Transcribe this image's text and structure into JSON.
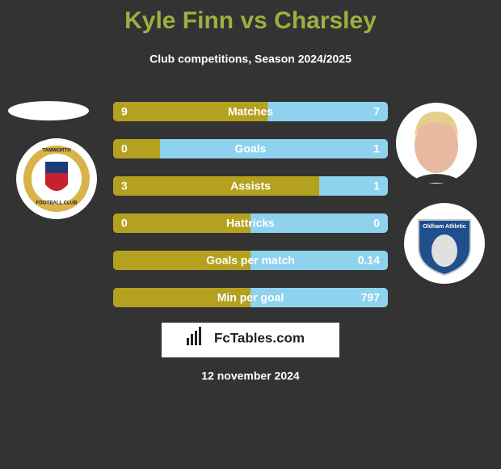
{
  "title": "Kyle Finn vs Charsley",
  "subtitle": "Club competitions, Season 2024/2025",
  "left_color": "#b3a11f",
  "right_color": "#8ed2ee",
  "rows": [
    {
      "label": "Matches",
      "left": 9,
      "right": 7
    },
    {
      "label": "Goals",
      "left": 0,
      "right": 1
    },
    {
      "label": "Assists",
      "left": 3,
      "right": 1
    },
    {
      "label": "Hattricks",
      "left": 0,
      "right": 0
    },
    {
      "label": "Goals per match",
      "right": 0.14
    },
    {
      "label": "Min per goal",
      "right": 797
    }
  ],
  "left_logo": {
    "top": "TAMWORTH",
    "bottom": "FOOTBALL CLUB"
  },
  "right_logo": {
    "name": "Oldham Athletic"
  },
  "brand": "FcTables.com",
  "date": "12 november 2024"
}
